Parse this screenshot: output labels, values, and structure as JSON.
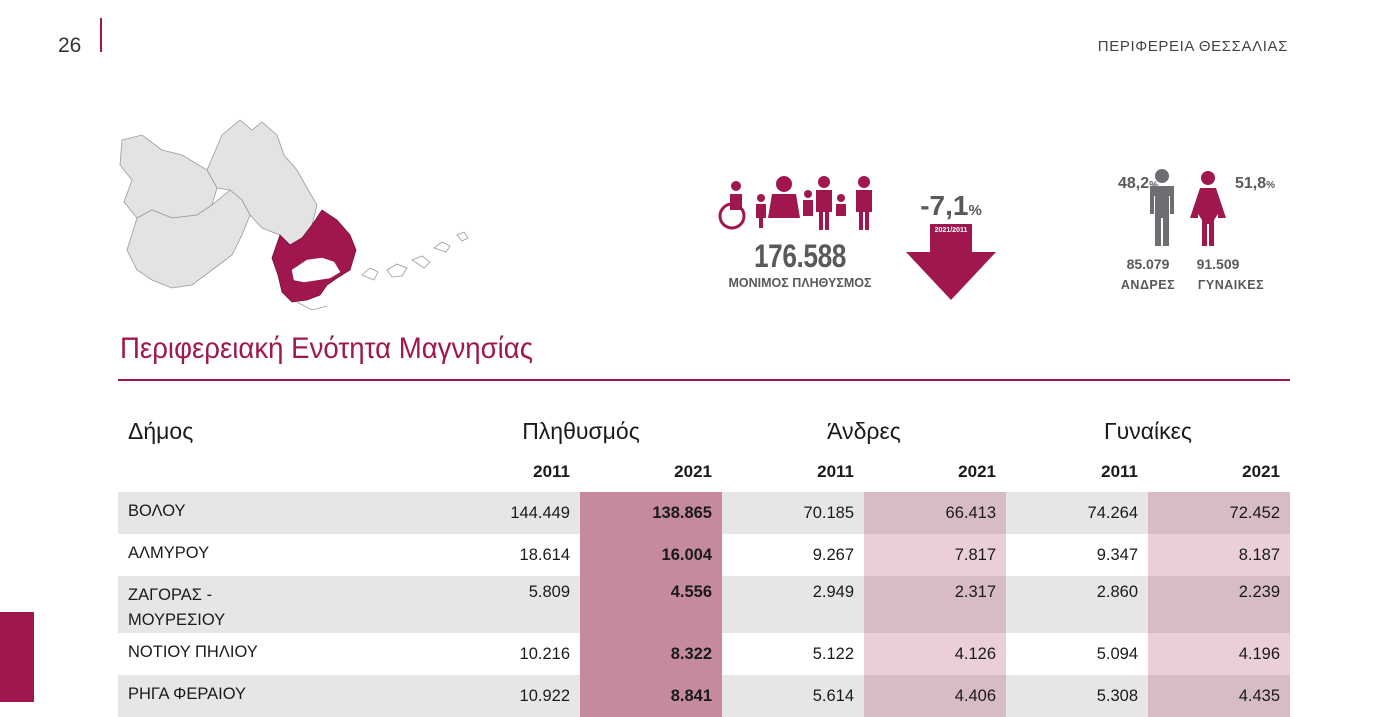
{
  "header": {
    "page_number": "26",
    "region": "ΠΕΡΙΦΕΡΕΙΑ ΘΕΣΣΑΛΙΑΣ"
  },
  "colors": {
    "accent": "#a0174f",
    "grey_text": "#58595b"
  },
  "stats": {
    "population_value": "176.588",
    "population_label": "ΜΟΝΙΜΟΣ ΠΛΗΘΥΣΜΟΣ",
    "change_value": "-7,1",
    "change_unit": "%",
    "change_period": "2021/2011",
    "men_pct": "48,2",
    "women_pct": "51,8",
    "pct_unit": "%",
    "men_count": "85.079",
    "women_count": "91.509",
    "men_label": "ΑΝΔΡΕΣ",
    "women_label": "ΓΥΝΑΙΚΕΣ"
  },
  "section_title": "Περιφερειακή Ενότητα Μαγνησίας",
  "table": {
    "headers": {
      "municipality": "Δήμος",
      "population": "Πληθυσμός",
      "men": "Άνδρες",
      "women": "Γυναίκες"
    },
    "years": [
      "2011",
      "2021",
      "2011",
      "2021",
      "2011",
      "2021"
    ],
    "rows": [
      {
        "name": "ΒΟΛΟΥ",
        "pop2011": "144.449",
        "pop2021": "138.865",
        "men2011": "70.185",
        "men2021": "66.413",
        "women2011": "74.264",
        "women2021": "72.452"
      },
      {
        "name": "ΑΛΜΥΡΟΥ",
        "pop2011": "18.614",
        "pop2021": "16.004",
        "men2011": "9.267",
        "men2021": "7.817",
        "women2011": "9.347",
        "women2021": "8.187"
      },
      {
        "name_line1": "ΖΑΓΟΡΑΣ -",
        "name_line2": "ΜΟΥΡΕΣΙΟΥ",
        "pop2011": "5.809",
        "pop2021": "4.556",
        "men2011": "2.949",
        "men2021": "2.317",
        "women2011": "2.860",
        "women2021": "2.239"
      },
      {
        "name": "ΝΟΤΙΟΥ ΠΗΛΙΟΥ",
        "pop2011": "10.216",
        "pop2021": "8.322",
        "men2011": "5.122",
        "men2021": "4.126",
        "women2011": "5.094",
        "women2021": "4.196"
      },
      {
        "name": "ΡΗΓΑ ΦΕΡΑΙΟΥ",
        "pop2011": "10.922",
        "pop2021": "8.841",
        "men2011": "5.614",
        "men2021": "4.406",
        "women2011": "5.308",
        "women2021": "4.435"
      }
    ]
  }
}
